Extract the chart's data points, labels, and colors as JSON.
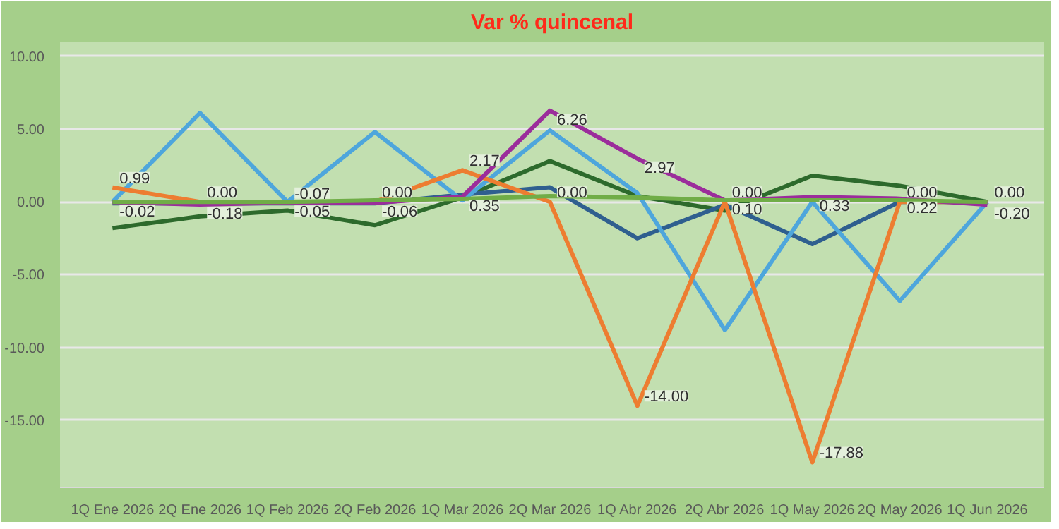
{
  "chart_data": {
    "type": "line",
    "title": "Var % quincenal",
    "categories": [
      "1Q Ene 2026",
      "2Q Ene 2026",
      "1Q Feb 2026",
      "2Q Feb 2026",
      "1Q Mar 2026",
      "2Q Mar 2026",
      "1Q Abr 2026",
      "2Q Abr 2026",
      "1Q May 2026",
      "2Q May 2026",
      "1Q Jun 2026"
    ],
    "ylim": [
      -19.6,
      11
    ],
    "yticks": [
      {
        "value": 10,
        "label": "10.00"
      },
      {
        "value": 5,
        "label": "5.00"
      },
      {
        "value": 0,
        "label": "0.00"
      },
      {
        "value": -5,
        "label": "-5.00"
      },
      {
        "value": -10,
        "label": "-10.00"
      },
      {
        "value": -15,
        "label": "-15.00"
      }
    ],
    "grid": "y",
    "marker": "none",
    "line_style": "solid",
    "series": [
      {
        "color": "#2d6a2c",
        "values": [
          -1.8,
          -1.0,
          -0.6,
          -1.6,
          0.3,
          2.8,
          0.4,
          -0.6,
          1.8,
          1.1,
          0
        ]
      },
      {
        "color": "#2f5f8f",
        "values": [
          -0.1,
          -0.1,
          -0.1,
          -0.1,
          0.5,
          1.0,
          -2.5,
          -0.2,
          -2.9,
          0,
          0
        ]
      },
      {
        "color": "#4ea6dc",
        "values": [
          0,
          6.1,
          0,
          4.8,
          0.1,
          4.9,
          0.6,
          -8.8,
          0,
          -6.8,
          0
        ]
      },
      {
        "color": "#ed7d31",
        "values": [
          0.99,
          0.0,
          -0.07,
          0.0,
          2.17,
          0.0,
          -14.0,
          0.0,
          -17.88,
          0.0,
          0.0
        ],
        "value_labels": [
          "0.99",
          "0.00",
          "-0.07",
          "0.00",
          "2.17",
          "0.00",
          "-14.00",
          "0.00",
          "-17.88",
          "0.00",
          "0.00"
        ]
      },
      {
        "color": "#9b2d9b",
        "values": [
          -0.02,
          -0.18,
          -0.05,
          -0.06,
          0.35,
          6.26,
          2.97,
          0.1,
          0.33,
          0.22,
          -0.2
        ],
        "value_labels": [
          "-0.02",
          "-0.18",
          "-0.05",
          "-0.06",
          "0.35",
          "6.26",
          "2.97",
          "0.10",
          "0.33",
          "0.22",
          "-0.20"
        ]
      },
      {
        "color": "#70ad47",
        "values": [
          0,
          0,
          0,
          0.1,
          0.2,
          0.4,
          0.3,
          0.1,
          0.1,
          0.1,
          0
        ]
      }
    ]
  }
}
